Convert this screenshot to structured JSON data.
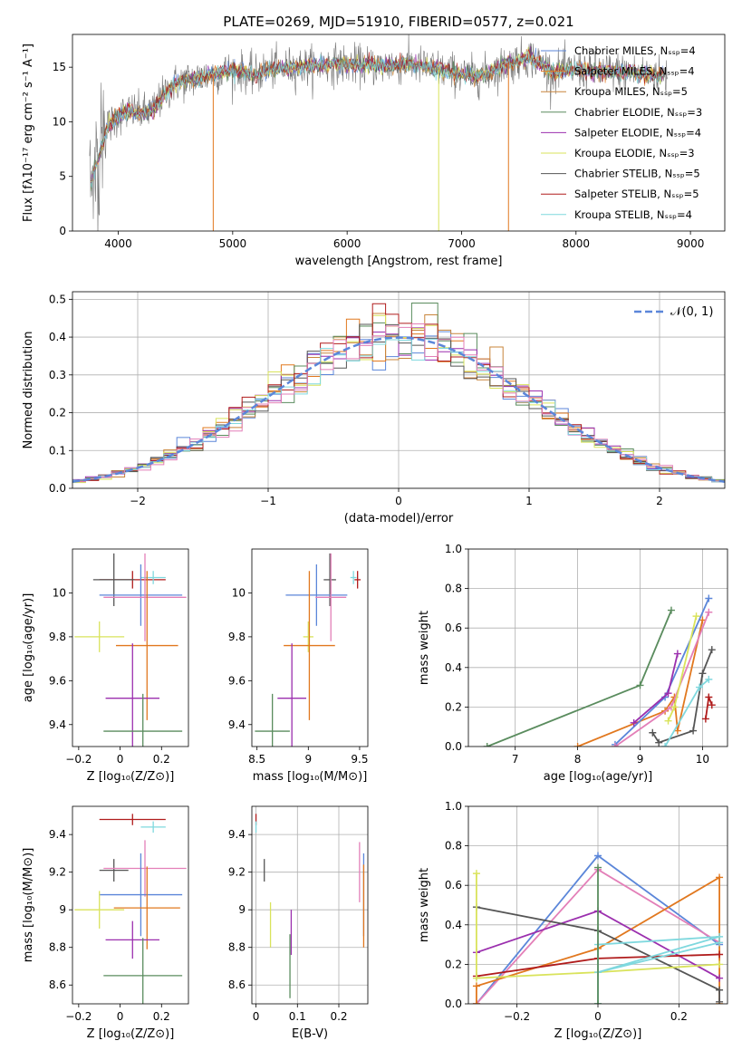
{
  "title": "PLATE=0269, MJD=51910, FIBERID=0577, z=0.021",
  "colors": [
    "#5b86d9",
    "#e1781f",
    "#c8843a",
    "#5a8c5e",
    "#9b2fae",
    "#d9e35b",
    "#555555",
    "#b01c1c",
    "#7fd8de",
    "#e37fb8"
  ],
  "chart_data": [
    {
      "id": "spectrum",
      "type": "line",
      "xlabel": "wavelength [Angstrom, rest frame]",
      "ylabel": "Flux [fλ10⁻¹⁷ erg cm⁻² s⁻¹ A⁻¹]",
      "xlim": [
        3600,
        9300
      ],
      "ylim": [
        0,
        18
      ],
      "xticks": [
        4000,
        5000,
        6000,
        7000,
        8000,
        9000
      ],
      "yticks": [
        0,
        5,
        10,
        15
      ],
      "legend_position": "right",
      "legend": [
        {
          "label": "Chabrier MILES, Nₛₛₚ=4",
          "color": "#5b86d9"
        },
        {
          "label": "Salpeter MILES, Nₛₛₚ=4",
          "color": "#e1781f"
        },
        {
          "label": "Kroupa MILES, Nₛₛₚ=5",
          "color": "#c8843a"
        },
        {
          "label": "Chabrier ELODIE, Nₛₛₚ=3",
          "color": "#5a8c5e"
        },
        {
          "label": "Salpeter ELODIE, Nₛₛₚ=4",
          "color": "#9b2fae"
        },
        {
          "label": "Kroupa ELODIE, Nₛₛₚ=3",
          "color": "#d9e35b"
        },
        {
          "label": "Chabrier STELIB, Nₛₛₚ=5",
          "color": "#555555"
        },
        {
          "label": "Salpeter STELIB, Nₛₛₚ=5",
          "color": "#b01c1c"
        },
        {
          "label": "Kroupa STELIB, Nₛₛₚ=4",
          "color": "#7fd8de"
        }
      ],
      "continuum": [
        [
          3750,
          4
        ],
        [
          3800,
          6
        ],
        [
          3850,
          7.5
        ],
        [
          3900,
          9.5
        ],
        [
          4000,
          10.5
        ],
        [
          4100,
          11
        ],
        [
          4200,
          10.8
        ],
        [
          4300,
          11
        ],
        [
          4400,
          12.5
        ],
        [
          4500,
          13.5
        ],
        [
          4600,
          13.8
        ],
        [
          4700,
          14
        ],
        [
          4800,
          14.3
        ],
        [
          4900,
          14.5
        ],
        [
          5000,
          14.7
        ],
        [
          5100,
          14.6
        ],
        [
          5200,
          14.2
        ],
        [
          5300,
          14.8
        ],
        [
          5500,
          15
        ],
        [
          5700,
          15.1
        ],
        [
          5900,
          15.3
        ],
        [
          6100,
          15.2
        ],
        [
          6300,
          15.1
        ],
        [
          6500,
          15.3
        ],
        [
          6700,
          15
        ],
        [
          6900,
          14.6
        ],
        [
          7000,
          14.3
        ],
        [
          7100,
          14.2
        ],
        [
          7200,
          14.3
        ],
        [
          7300,
          14.8
        ],
        [
          7400,
          15.3
        ],
        [
          7500,
          15.6
        ],
        [
          7600,
          16
        ],
        [
          7700,
          15.2
        ],
        [
          7800,
          14.6
        ],
        [
          8000,
          14.8
        ],
        [
          8200,
          14.6
        ],
        [
          8400,
          14.6
        ],
        [
          8600,
          14.4
        ],
        [
          8800,
          14.2
        ]
      ]
    },
    {
      "id": "residuals",
      "type": "histogram",
      "xlabel": "(data-model)/error",
      "ylabel": "Normed distribution",
      "xlim": [
        -2.5,
        2.5
      ],
      "ylim": [
        0,
        0.52
      ],
      "xticks": [
        -2,
        -1,
        0,
        1,
        2
      ],
      "yticks": [
        0.0,
        0.1,
        0.2,
        0.3,
        0.4,
        0.5
      ],
      "grid": true,
      "legend_position": "top-right",
      "legend": [
        {
          "label": "𝒩(0, 1)",
          "color": "#5b86d9"
        }
      ],
      "bin_width": 0.1
    },
    {
      "id": "age-vs-Z",
      "type": "errorbar",
      "xlabel": "Z [log₁₀(Z/Z⊙)]",
      "ylabel": "age  [log₁₀(age/yr)]",
      "xlim": [
        -0.23,
        0.33
      ],
      "ylim": [
        9.3,
        10.2
      ],
      "xticks": [
        -0.2,
        0.0,
        0.2
      ],
      "yticks": [
        9.4,
        9.6,
        9.8,
        10.0
      ],
      "points": [
        {
          "color": "#b01c1c",
          "x": 0.06,
          "xerr": 0.16,
          "y": 10.06,
          "yerr": 0.04
        },
        {
          "color": "#555555",
          "x": -0.03,
          "xerr": 0.1,
          "y": 10.06,
          "yerr": 0.12
        },
        {
          "color": "#7fd8de",
          "x": 0.16,
          "xerr": 0.06,
          "y": 10.07,
          "yerr": 0.03
        },
        {
          "color": "#5b86d9",
          "x": 0.1,
          "xerr": 0.2,
          "y": 9.99,
          "yerr": 0.14
        },
        {
          "color": "#e37fb8",
          "x": 0.12,
          "xerr": 0.2,
          "y": 9.98,
          "yerr": 0.2
        },
        {
          "color": "#d9e35b",
          "x": -0.1,
          "xerr": 0.12,
          "y": 9.8,
          "yerr": 0.07
        },
        {
          "color": "#e1781f",
          "x": 0.13,
          "xerr": 0.15,
          "y": 9.76,
          "yerr": 0.34
        },
        {
          "color": "#9b2fae",
          "x": 0.06,
          "xerr": 0.13,
          "y": 9.52,
          "yerr": 0.25
        },
        {
          "color": "#5a8c5e",
          "x": 0.11,
          "xerr": 0.19,
          "y": 9.37,
          "yerr": 0.17
        }
      ]
    },
    {
      "id": "age-vs-mass",
      "type": "errorbar",
      "xlabel": "mass [log₁₀(M/M⊙)]",
      "ylabel": "",
      "xlim": [
        8.45,
        9.58
      ],
      "ylim": [
        9.3,
        10.2
      ],
      "xticks": [
        8.5,
        9.0,
        9.5
      ],
      "yticks": [
        9.4,
        9.6,
        9.8,
        10.0
      ],
      "points": [
        {
          "color": "#b01c1c",
          "x": 9.48,
          "xerr": 0.03,
          "y": 10.06,
          "yerr": 0.04
        },
        {
          "color": "#555555",
          "x": 9.21,
          "xerr": 0.06,
          "y": 10.06,
          "yerr": 0.12
        },
        {
          "color": "#7fd8de",
          "x": 9.44,
          "xerr": 0.03,
          "y": 10.07,
          "yerr": 0.03
        },
        {
          "color": "#5b86d9",
          "x": 9.08,
          "xerr": 0.3,
          "y": 9.99,
          "yerr": 0.14
        },
        {
          "color": "#e37fb8",
          "x": 9.22,
          "xerr": 0.15,
          "y": 9.98,
          "yerr": 0.2
        },
        {
          "color": "#d9e35b",
          "x": 9.0,
          "xerr": 0.05,
          "y": 9.8,
          "yerr": 0.07
        },
        {
          "color": "#e1781f",
          "x": 9.01,
          "xerr": 0.25,
          "y": 9.76,
          "yerr": 0.34
        },
        {
          "color": "#9b2fae",
          "x": 8.84,
          "xerr": 0.14,
          "y": 9.52,
          "yerr": 0.25
        },
        {
          "color": "#5a8c5e",
          "x": 8.65,
          "xerr": 0.17,
          "y": 9.37,
          "yerr": 0.17
        }
      ]
    },
    {
      "id": "massweight-vs-age",
      "type": "line",
      "xlabel": "age  [log₁₀(age/yr)]",
      "ylabel": "mass weight",
      "xlim": [
        6.25,
        10.4
      ],
      "ylim": [
        0,
        1
      ],
      "xticks": [
        7,
        8,
        9,
        10
      ],
      "yticks": [
        0.0,
        0.2,
        0.4,
        0.6,
        0.8,
        1.0
      ],
      "grid": true,
      "series": [
        {
          "color": "#5a8c5e",
          "values": [
            [
              6.55,
              0
            ],
            [
              9.0,
              0.31
            ],
            [
              9.5,
              0.69
            ]
          ]
        },
        {
          "color": "#e1781f",
          "values": [
            [
              8.0,
              0.0
            ],
            [
              9.4,
              0.18
            ],
            [
              9.55,
              0.25
            ],
            [
              9.6,
              0.08
            ],
            [
              10.0,
              0.64
            ]
          ]
        },
        {
          "color": "#5b86d9",
          "values": [
            [
              8.6,
              0.01
            ],
            [
              9.4,
              0.25
            ],
            [
              10.1,
              0.75
            ]
          ]
        },
        {
          "color": "#e37fb8",
          "values": [
            [
              8.6,
              0.0
            ],
            [
              9.5,
              0.2
            ],
            [
              10.1,
              0.68
            ]
          ]
        },
        {
          "color": "#9b2fae",
          "values": [
            [
              8.9,
              0.12
            ],
            [
              9.45,
              0.27
            ],
            [
              9.6,
              0.47
            ]
          ]
        },
        {
          "color": "#d9e35b",
          "values": [
            [
              9.45,
              0.13
            ],
            [
              9.55,
              0.2
            ],
            [
              9.9,
              0.66
            ]
          ]
        },
        {
          "color": "#555555",
          "values": [
            [
              9.2,
              0.07
            ],
            [
              9.3,
              0.02
            ],
            [
              9.85,
              0.08
            ],
            [
              10.0,
              0.37
            ],
            [
              10.15,
              0.49
            ]
          ]
        },
        {
          "color": "#b01c1c",
          "values": [
            [
              10.05,
              0.14
            ],
            [
              10.1,
              0.25
            ],
            [
              10.15,
              0.21
            ]
          ]
        },
        {
          "color": "#7fd8de",
          "values": [
            [
              9.4,
              0.0
            ],
            [
              9.95,
              0.3
            ],
            [
              10.1,
              0.34
            ]
          ]
        }
      ]
    },
    {
      "id": "mass-vs-Z",
      "type": "errorbar",
      "xlabel": "Z [log₁₀(Z/Z⊙)]",
      "ylabel": "mass [log₁₀(M/M⊙)]",
      "xlim": [
        -0.23,
        0.33
      ],
      "ylim": [
        8.5,
        9.55
      ],
      "xticks": [
        -0.2,
        0.0,
        0.2
      ],
      "yticks": [
        8.6,
        8.8,
        9.0,
        9.2,
        9.4
      ],
      "points": [
        {
          "color": "#b01c1c",
          "x": 0.06,
          "xerr": 0.16,
          "y": 9.48,
          "yerr": 0.03
        },
        {
          "color": "#7fd8de",
          "x": 0.16,
          "xerr": 0.06,
          "y": 9.44,
          "yerr": 0.03
        },
        {
          "color": "#555555",
          "x": -0.03,
          "xerr": 0.07,
          "y": 9.21,
          "yerr": 0.06
        },
        {
          "color": "#e37fb8",
          "x": 0.12,
          "xerr": 0.2,
          "y": 9.22,
          "yerr": 0.15
        },
        {
          "color": "#5b86d9",
          "x": 0.1,
          "xerr": 0.2,
          "y": 9.08,
          "yerr": 0.22
        },
        {
          "color": "#d9e35b",
          "x": -0.1,
          "xerr": 0.12,
          "y": 9.0,
          "yerr": 0.1
        },
        {
          "color": "#e1781f",
          "x": 0.13,
          "xerr": 0.16,
          "y": 9.01,
          "yerr": 0.22
        },
        {
          "color": "#9b2fae",
          "x": 0.06,
          "xerr": 0.13,
          "y": 8.84,
          "yerr": 0.1
        },
        {
          "color": "#5a8c5e",
          "x": 0.11,
          "xerr": 0.19,
          "y": 8.65,
          "yerr": 0.2
        }
      ]
    },
    {
      "id": "mass-vs-EBV",
      "type": "errorbar",
      "xlabel": "E(B-V)",
      "ylabel": "",
      "xlim": [
        -0.01,
        0.27
      ],
      "ylim": [
        8.5,
        9.55
      ],
      "xticks": [
        0.0,
        0.1,
        0.2
      ],
      "yticks": [
        8.6,
        8.8,
        9.0,
        9.2,
        9.4
      ],
      "grid": true,
      "points": [
        {
          "color": "#b01c1c",
          "x": 0.0,
          "xerr": 0,
          "y": 9.48,
          "yerr": 0.03
        },
        {
          "color": "#7fd8de",
          "x": 0.0,
          "xerr": 0,
          "y": 9.44,
          "yerr": 0.03
        },
        {
          "color": "#555555",
          "x": 0.02,
          "xerr": 0,
          "y": 9.21,
          "yerr": 0.06
        },
        {
          "color": "#d9e35b",
          "x": 0.035,
          "xerr": 0,
          "y": 8.92,
          "yerr": 0.12
        },
        {
          "color": "#9b2fae",
          "x": 0.085,
          "xerr": 0,
          "y": 8.88,
          "yerr": 0.12
        },
        {
          "color": "#5a8c5e",
          "x": 0.082,
          "xerr": 0,
          "y": 8.7,
          "yerr": 0.17
        },
        {
          "color": "#e37fb8",
          "x": 0.25,
          "xerr": 0,
          "y": 9.2,
          "yerr": 0.16
        },
        {
          "color": "#5b86d9",
          "x": 0.26,
          "xerr": 0,
          "y": 9.08,
          "yerr": 0.22
        },
        {
          "color": "#e1781f",
          "x": 0.26,
          "xerr": 0,
          "y": 9.02,
          "yerr": 0.22
        }
      ]
    },
    {
      "id": "massweight-vs-Z",
      "type": "line",
      "xlabel": "Z [log₁₀(Z/Z⊙)]",
      "ylabel": "mass weight",
      "xlim": [
        -0.32,
        0.32
      ],
      "ylim": [
        0,
        1
      ],
      "xticks": [
        -0.2,
        0.0,
        0.2
      ],
      "yticks": [
        0.0,
        0.2,
        0.4,
        0.6,
        0.8,
        1.0
      ],
      "grid": true,
      "series": [
        {
          "color": "#5b86d9",
          "values": [
            [
              -0.3,
              0.0
            ],
            [
              0.0,
              0.75
            ],
            [
              0.3,
              0.3
            ]
          ]
        },
        {
          "color": "#e37fb8",
          "values": [
            [
              -0.3,
              0.0
            ],
            [
              0.0,
              0.68
            ],
            [
              0.3,
              0.31
            ]
          ]
        },
        {
          "color": "#e1781f",
          "values": [
            [
              -0.3,
              0.0
            ],
            [
              -0.3,
              0.09
            ],
            [
              0.0,
              0.28
            ],
            [
              0.3,
              0.64
            ],
            [
              0.3,
              0.0
            ]
          ]
        },
        {
          "color": "#9b2fae",
          "values": [
            [
              -0.3,
              0.26
            ],
            [
              0.0,
              0.47
            ],
            [
              0.3,
              0.13
            ]
          ]
        },
        {
          "color": "#555555",
          "values": [
            [
              -0.3,
              0.49
            ],
            [
              0.0,
              0.37
            ],
            [
              0.3,
              0.07
            ],
            [
              0.3,
              0.01
            ]
          ]
        },
        {
          "color": "#b01c1c",
          "values": [
            [
              -0.3,
              0.14
            ],
            [
              0.0,
              0.23
            ],
            [
              0.3,
              0.25
            ]
          ]
        },
        {
          "color": "#d9e35b",
          "values": [
            [
              -0.3,
              0.66
            ],
            [
              -0.3,
              0.13
            ],
            [
              0.0,
              0.16
            ],
            [
              0.3,
              0.2
            ]
          ]
        },
        {
          "color": "#7fd8de",
          "values": [
            [
              0.0,
              0.0
            ],
            [
              0.0,
              0.3
            ],
            [
              0.3,
              0.34
            ],
            [
              0.0,
              0.16
            ],
            [
              0.3,
              0.31
            ]
          ]
        },
        {
          "color": "#5a8c5e",
          "values": [
            [
              0.0,
              0.0
            ],
            [
              0.0,
              0.69
            ]
          ]
        }
      ]
    }
  ]
}
